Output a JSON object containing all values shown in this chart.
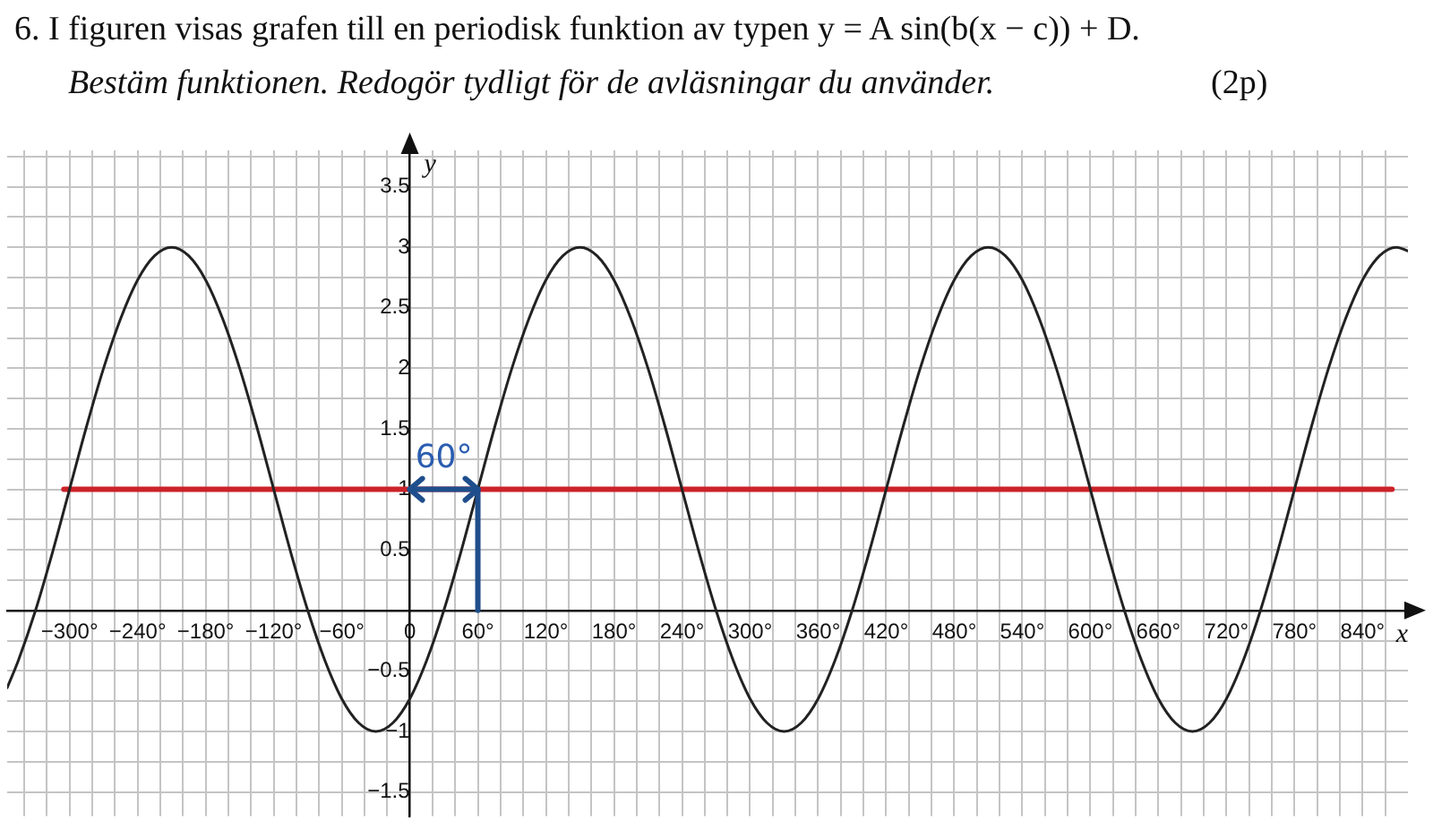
{
  "chart_data": {
    "type": "line",
    "title": "6. I figuren visas grafen till en periodisk funktion av typen y = A sin(b(x − c)) + D.",
    "subtitle": "Bestäm funktionen. Redogör tydligt för de avläsningar du använder.",
    "xlabel": "x",
    "ylabel": "y",
    "annotations": [
      "60°",
      "(2p)"
    ],
    "series": [
      {
        "color": "#222222",
        "x": [
          -355,
          -345,
          -330,
          -315,
          -300,
          -285,
          -270,
          -255,
          -240,
          -225,
          -210,
          -195,
          -180,
          -165,
          -150,
          -135,
          -120,
          -105,
          -90,
          -75,
          -60,
          -45,
          -30,
          -15,
          0,
          15,
          30,
          45,
          60,
          75,
          90,
          105,
          120,
          135,
          150,
          165,
          180,
          195,
          210,
          225,
          240,
          255,
          270,
          285,
          300,
          315,
          330,
          345,
          360,
          375,
          390,
          405,
          420,
          435,
          450,
          465,
          480,
          495,
          510,
          525,
          540,
          555,
          570,
          585,
          600,
          615,
          630,
          645,
          660,
          675,
          690,
          705,
          720,
          735,
          750,
          765,
          780,
          795,
          810,
          825,
          840,
          855,
          870,
          880
        ],
        "values": [
          -0.64,
          -0.41,
          0,
          0.48,
          1,
          1.52,
          2,
          2.41,
          2.73,
          2.93,
          3,
          2.93,
          2.73,
          2.41,
          2,
          1.52,
          1,
          0.48,
          0,
          -0.41,
          -0.73,
          -0.93,
          -1,
          -0.93,
          -0.73,
          -0.41,
          0,
          0.48,
          1,
          1.52,
          2,
          2.41,
          2.73,
          2.93,
          3,
          2.93,
          2.73,
          2.41,
          2,
          1.52,
          1,
          0.48,
          0,
          -0.41,
          -0.73,
          -0.93,
          -1,
          -0.93,
          -0.73,
          -0.41,
          0,
          0.48,
          1,
          1.52,
          2,
          2.41,
          2.73,
          2.93,
          3,
          2.93,
          2.73,
          2.41,
          2,
          1.52,
          1,
          0.48,
          0,
          -0.41,
          -0.73,
          -0.93,
          -1,
          -0.93,
          -0.73,
          -0.41,
          0,
          0.48,
          1,
          1.52,
          2,
          2.41,
          2.73,
          2.93,
          3,
          2.97
        ]
      },
      {
        "color": "#cc2229",
        "x": [
          -305,
          866
        ],
        "values": [
          1,
          1
        ]
      }
    ],
    "xlim": [
      -355,
      880
    ],
    "ylim": [
      -1.7,
      3.8
    ],
    "xticks": [
      {
        "value": -340,
        "label": null
      },
      {
        "value": -320,
        "label": null
      },
      {
        "value": -300,
        "label": "−300°"
      },
      {
        "value": -280,
        "label": null
      },
      {
        "value": -260,
        "label": null
      },
      {
        "value": -240,
        "label": "−240°"
      },
      {
        "value": -220,
        "label": null
      },
      {
        "value": -200,
        "label": null
      },
      {
        "value": -180,
        "label": "−180°"
      },
      {
        "value": -160,
        "label": null
      },
      {
        "value": -140,
        "label": null
      },
      {
        "value": -120,
        "label": "−120°"
      },
      {
        "value": -100,
        "label": null
      },
      {
        "value": -80,
        "label": null
      },
      {
        "value": -60,
        "label": "−60°"
      },
      {
        "value": -40,
        "label": null
      },
      {
        "value": -20,
        "label": null
      },
      0,
      {
        "value": 20,
        "label": null
      },
      {
        "value": 40,
        "label": null
      },
      {
        "value": 60,
        "label": "60°"
      },
      {
        "value": 80,
        "label": null
      },
      {
        "value": 100,
        "label": null
      },
      {
        "value": 120,
        "label": "120°"
      },
      {
        "value": 140,
        "label": null
      },
      {
        "value": 160,
        "label": null
      },
      {
        "value": 180,
        "label": "180°"
      },
      {
        "value": 200,
        "label": null
      },
      {
        "value": 220,
        "label": null
      },
      {
        "value": 240,
        "label": "240°"
      },
      {
        "value": 260,
        "label": null
      },
      {
        "value": 280,
        "label": null
      },
      {
        "value": 300,
        "label": "300°"
      },
      {
        "value": 320,
        "label": null
      },
      {
        "value": 340,
        "label": null
      },
      {
        "value": 360,
        "label": "360°"
      },
      {
        "value": 380,
        "label": null
      },
      {
        "value": 400,
        "label": null
      },
      {
        "value": 420,
        "label": "420°"
      },
      {
        "value": 440,
        "label": null
      },
      {
        "value": 460,
        "label": null
      },
      {
        "value": 480,
        "label": "480°"
      },
      {
        "value": 500,
        "label": null
      },
      {
        "value": 520,
        "label": null
      },
      {
        "value": 540,
        "label": "540°"
      },
      {
        "value": 560,
        "label": null
      },
      {
        "value": 580,
        "label": null
      },
      {
        "value": 600,
        "label": "600°"
      },
      {
        "value": 620,
        "label": null
      },
      {
        "value": 640,
        "label": null
      },
      {
        "value": 660,
        "label": "660°"
      },
      {
        "value": 680,
        "label": null
      },
      {
        "value": 700,
        "label": null
      },
      {
        "value": 720,
        "label": "720°"
      },
      {
        "value": 740,
        "label": null
      },
      {
        "value": 760,
        "label": null
      },
      {
        "value": 780,
        "label": "780°"
      },
      {
        "value": 800,
        "label": null
      },
      {
        "value": 820,
        "label": null
      },
      {
        "value": 840,
        "label": "840°"
      },
      {
        "value": 860,
        "label": null
      }
    ],
    "yticks": [
      {
        "value": -1.5,
        "label": "−1.5"
      },
      {
        "value": -1.25,
        "label": null
      },
      {
        "value": -1,
        "label": "−1"
      },
      {
        "value": -0.75,
        "label": null
      },
      {
        "value": -0.5,
        "label": "−0.5"
      },
      {
        "value": -0.25,
        "label": null
      },
      {
        "value": 0,
        "label": null
      },
      {
        "value": 0.25,
        "label": null
      },
      0.5,
      {
        "value": 0.75,
        "label": null
      },
      1,
      {
        "value": 1.25,
        "label": null
      },
      1.5,
      {
        "value": 1.75,
        "label": null
      },
      2,
      {
        "value": 2.25,
        "label": null
      },
      2.5,
      {
        "value": 2.75,
        "label": null
      },
      3,
      {
        "value": 3.25,
        "label": null
      },
      3.5,
      {
        "value": 3.75,
        "label": null
      }
    ],
    "grid": true,
    "legend": false,
    "marker": "none",
    "line_style": "solid"
  }
}
